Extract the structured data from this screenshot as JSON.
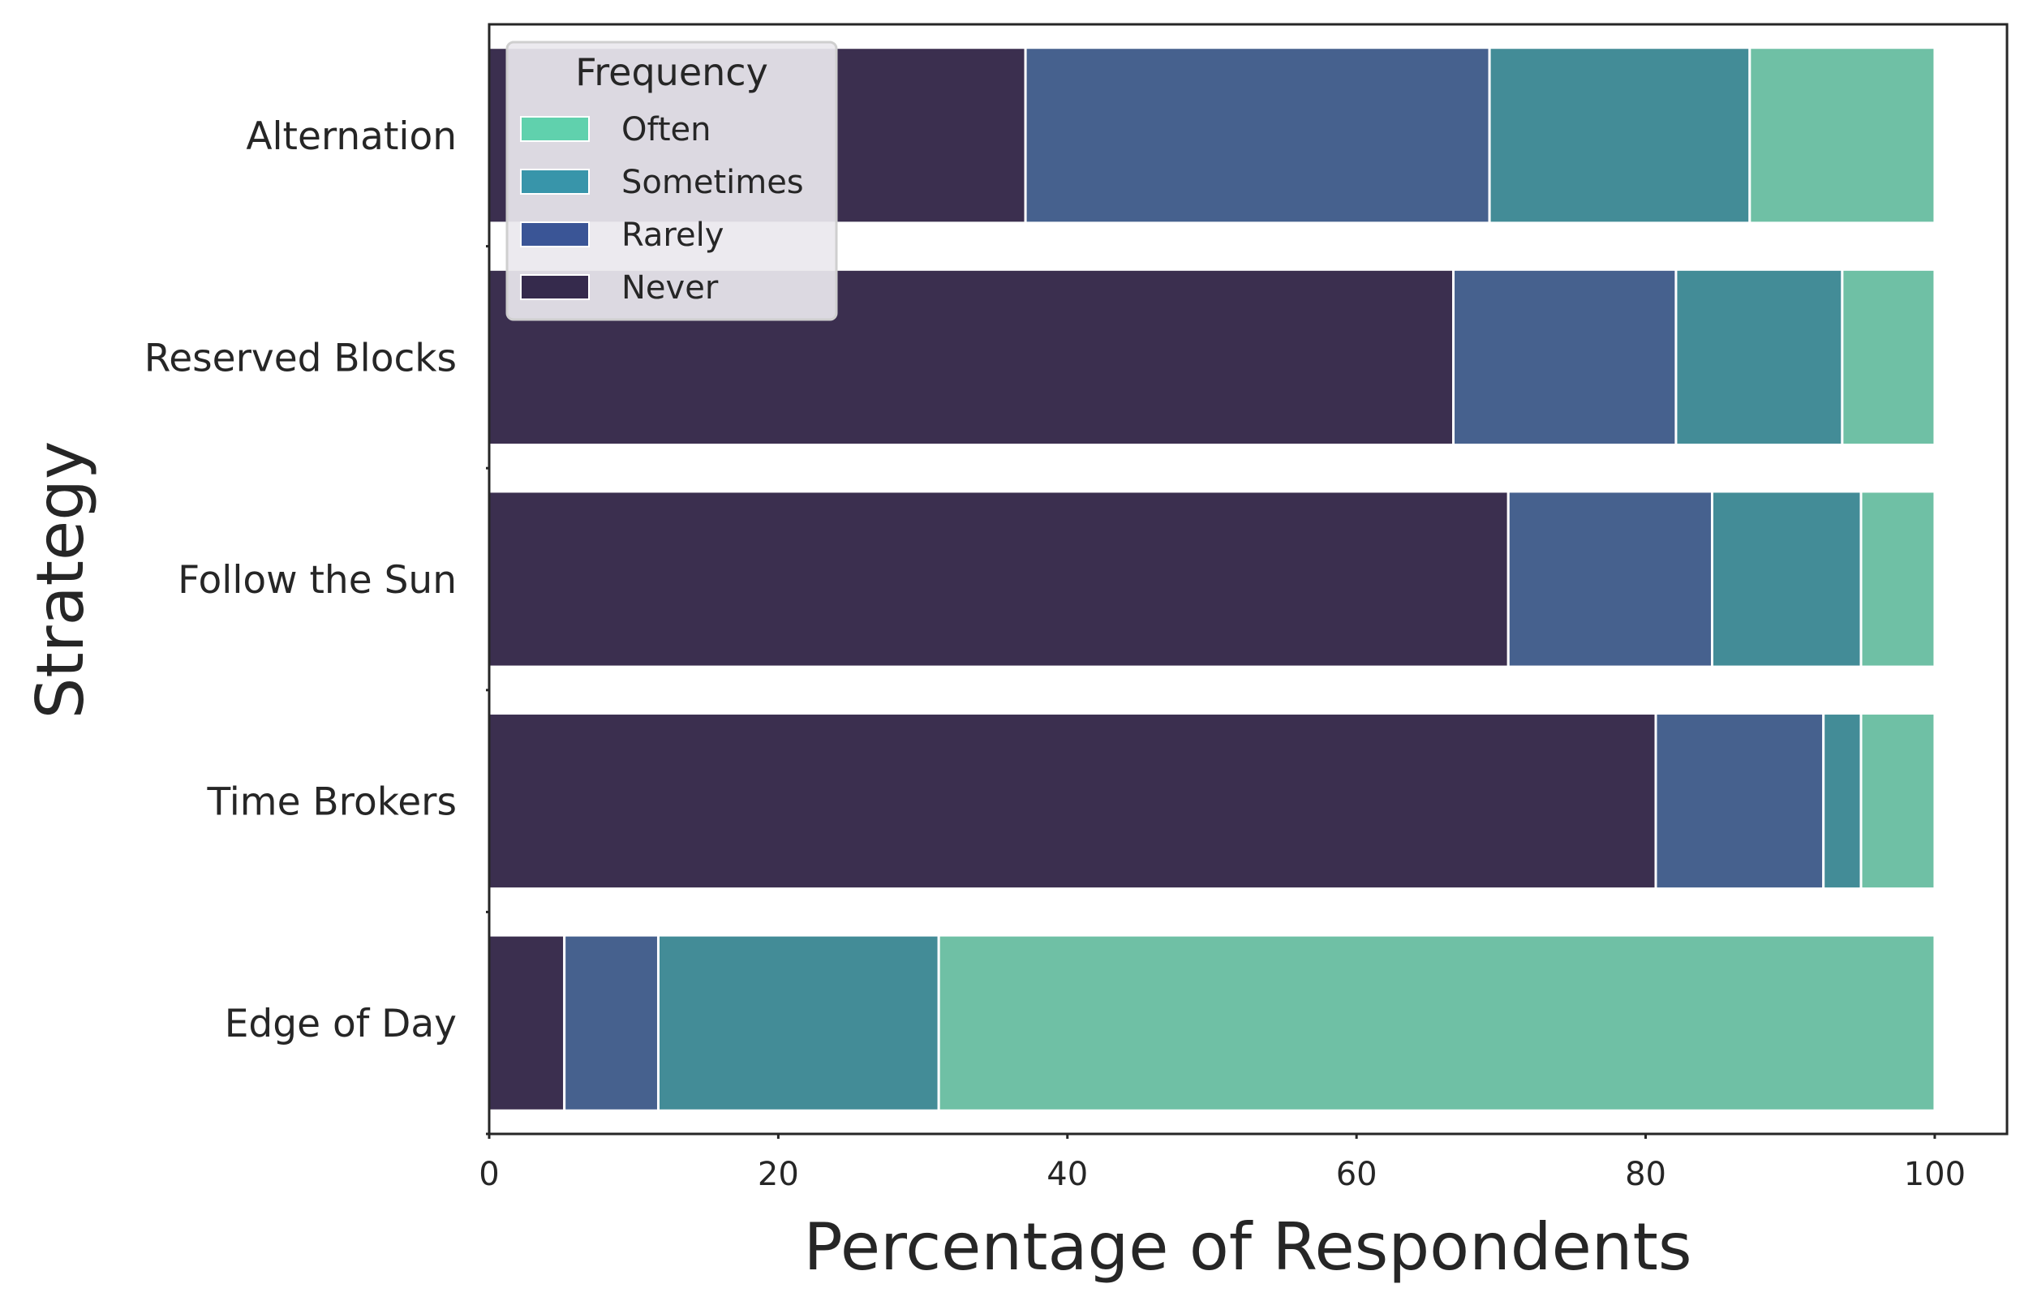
{
  "chart_data": {
    "type": "bar",
    "orientation": "horizontal",
    "stacked": true,
    "title": "",
    "xlabel": "Percentage of Respondents",
    "ylabel": "Strategy",
    "xlim": [
      0,
      105
    ],
    "xticks": [
      0,
      20,
      40,
      60,
      80,
      100
    ],
    "categories": [
      "Alternation",
      "Reserved Blocks",
      "Follow the Sun",
      "Time Brokers",
      "Edge of Day"
    ],
    "series": [
      {
        "name": "Never",
        "color": "#3b2f4f",
        "values": [
          37.1,
          66.7,
          70.5,
          80.7,
          5.2
        ]
      },
      {
        "name": "Rarely",
        "color": "#46618e",
        "values": [
          32.1,
          15.4,
          14.1,
          11.6,
          6.5
        ]
      },
      {
        "name": "Sometimes",
        "color": "#438c97",
        "values": [
          18.0,
          11.5,
          10.3,
          2.6,
          19.4
        ]
      },
      {
        "name": "Often",
        "color": "#6fc0a5",
        "values": [
          12.8,
          6.4,
          5.1,
          5.1,
          68.9
        ]
      }
    ],
    "legend": {
      "title": "Frequency",
      "placement": "upper-left",
      "order": [
        "Often",
        "Sometimes",
        "Rarely",
        "Never"
      ],
      "patch_colors": {
        "Often": "#60d1ad",
        "Sometimes": "#3895aa",
        "Rarely": "#3a5596",
        "Never": "#352a4c"
      }
    },
    "grid": false
  }
}
